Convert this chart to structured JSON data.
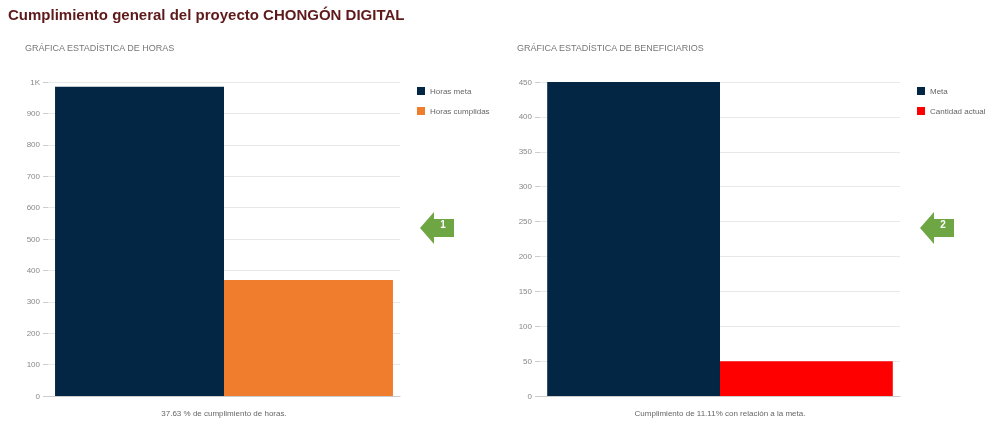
{
  "chart_data": [
    {
      "type": "bar",
      "title": "Cumplimiento general del proyecto CHONGÓN DIGITAL",
      "subtitle": "GRÁFICA ESTADÍSTICA DE HORAS",
      "xlabel": "37.63 % de cumplimiento de horas.",
      "categories": [
        null
      ],
      "series": [
        {
          "name": "Horas meta",
          "color": "#022643",
          "values": [
            985
          ]
        },
        {
          "name": "Horas cumplidas",
          "color": "#ef7d2d",
          "values": [
            370
          ]
        }
      ],
      "ylim": [
        0,
        1000
      ],
      "yticks": [
        0,
        100,
        200,
        300,
        400,
        500,
        600,
        700,
        800,
        900,
        {
          "value": 1000,
          "label": "1K"
        }
      ],
      "grid": "y",
      "legend": "top right",
      "annotations": [
        "1"
      ]
    },
    {
      "type": "bar",
      "title": "GRÁFICA ESTADÍSTICA DE BENEFICIARIOS",
      "xlabel": "Cumplimiento de 11.11% con relación a la meta.",
      "categories": [
        null
      ],
      "series": [
        {
          "name": "Meta",
          "color": "#022643",
          "values": [
            450
          ]
        },
        {
          "name": "Cantidad actual",
          "color": "#fe0000",
          "values": [
            50
          ]
        }
      ],
      "ylim": [
        0,
        450
      ],
      "yticks": [
        0,
        50,
        100,
        150,
        200,
        250,
        300,
        350,
        400,
        450
      ],
      "grid": "y",
      "legend": "top right",
      "annotations": [
        "2"
      ]
    }
  ]
}
